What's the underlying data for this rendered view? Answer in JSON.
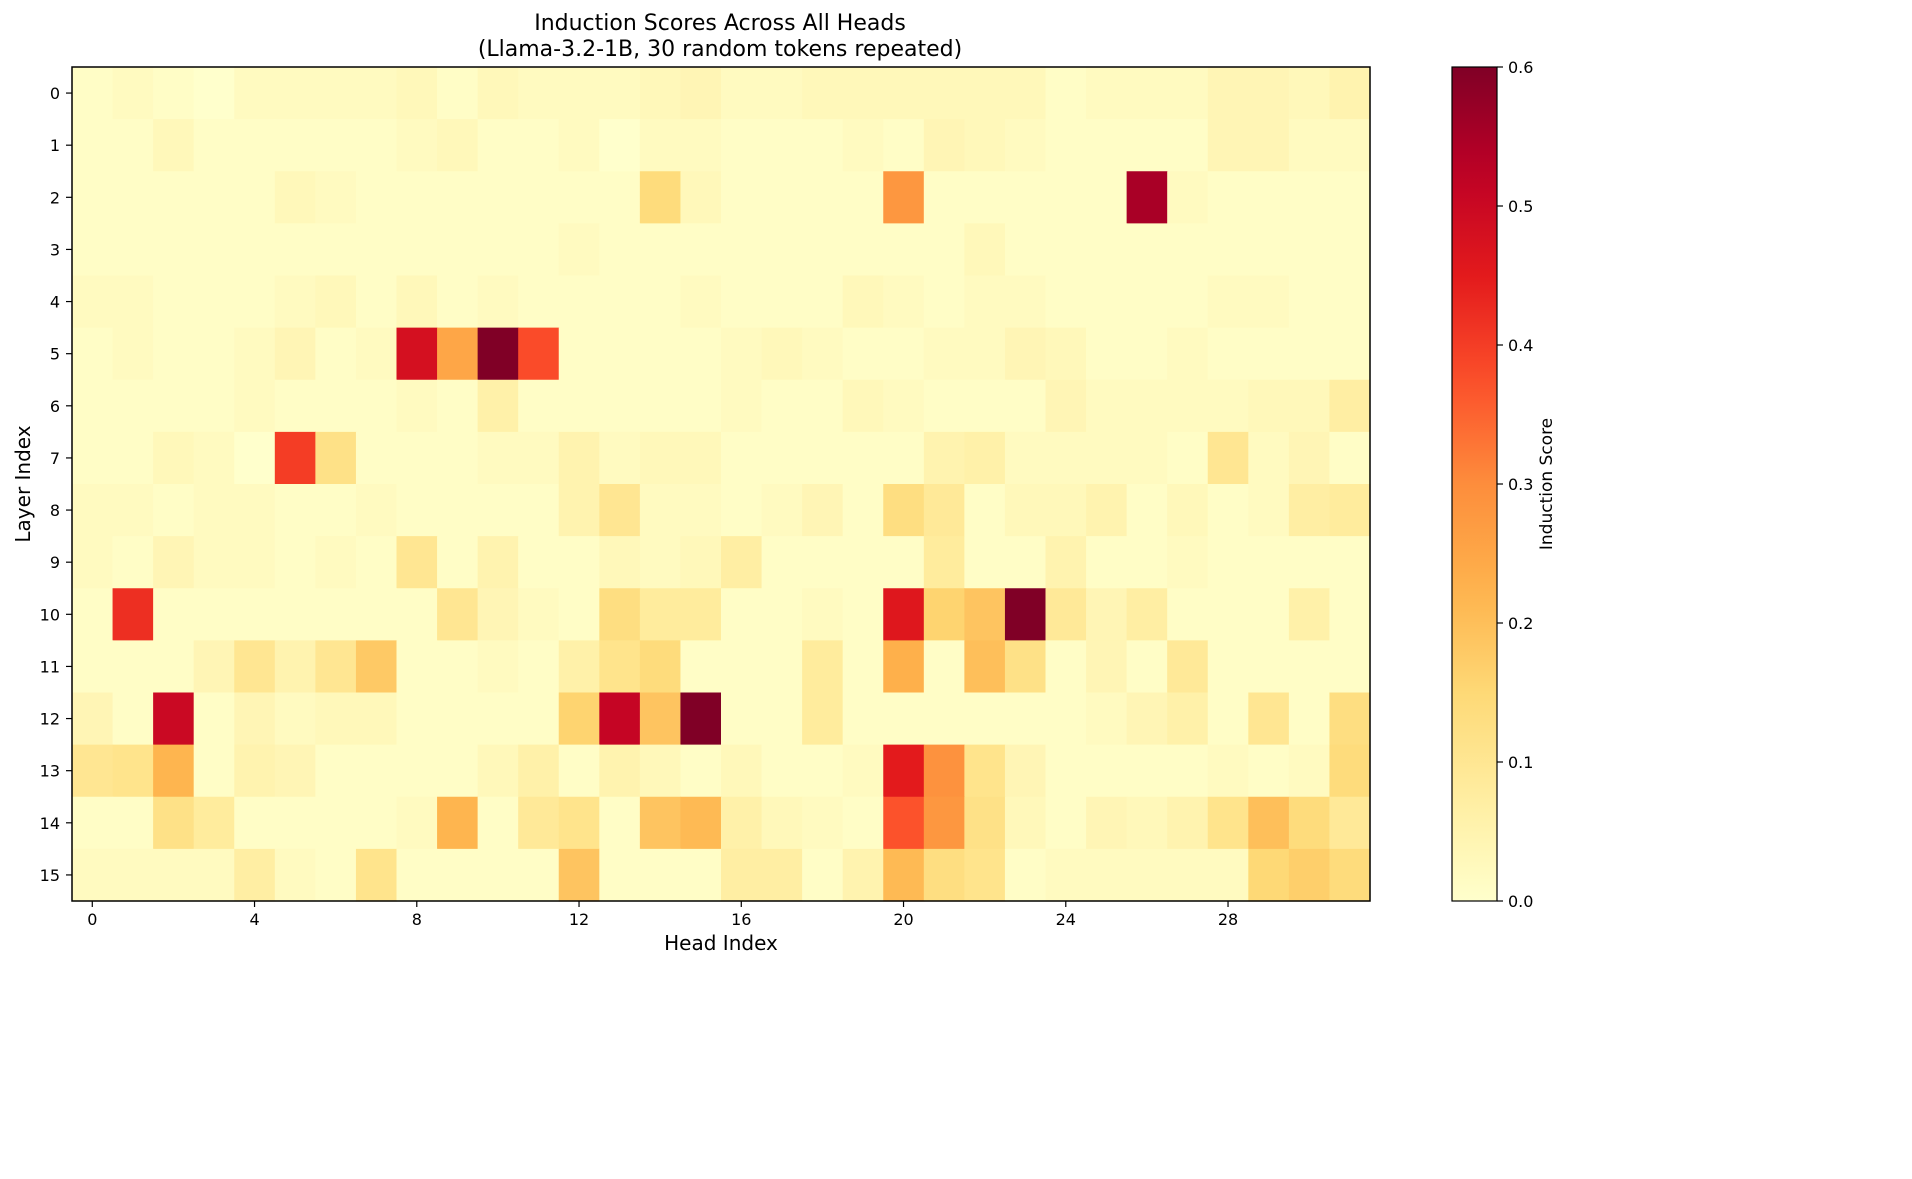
{
  "chart_data": {
    "type": "heatmap",
    "title": "Induction Scores Across All Heads",
    "subtitle": "(Llama-3.2-1B, 30 random tokens repeated)",
    "xlabel": "Head Index",
    "ylabel": "Layer Index",
    "colorbar_label": "Induction Score",
    "colormap": "YlOrRd",
    "colormap_stops": [
      "#ffffcc",
      "#ffeda0",
      "#fed976",
      "#feb24c",
      "#fd8d3c",
      "#fc4e2a",
      "#e31a1c",
      "#bd0026",
      "#800026"
    ],
    "vmin": 0.0,
    "vmax": 0.6,
    "x_ticks": [
      "0",
      "4",
      "8",
      "12",
      "16",
      "20",
      "24",
      "28"
    ],
    "y_ticks": [
      "0",
      "1",
      "2",
      "3",
      "4",
      "5",
      "6",
      "7",
      "8",
      "9",
      "10",
      "11",
      "12",
      "13",
      "14",
      "15"
    ],
    "colorbar_ticks": [
      "0.0",
      "0.1",
      "0.2",
      "0.3",
      "0.4",
      "0.5",
      "0.6"
    ],
    "n_heads": 32,
    "n_layers": 16,
    "values": [
      [
        0.01,
        0.02,
        0.01,
        0.0,
        0.02,
        0.02,
        0.02,
        0.02,
        0.03,
        0.01,
        0.03,
        0.02,
        0.02,
        0.02,
        0.03,
        0.04,
        0.02,
        0.02,
        0.03,
        0.03,
        0.03,
        0.03,
        0.03,
        0.03,
        0.01,
        0.02,
        0.02,
        0.02,
        0.04,
        0.04,
        0.03,
        0.05
      ],
      [
        0.01,
        0.01,
        0.03,
        0.01,
        0.01,
        0.01,
        0.01,
        0.01,
        0.02,
        0.03,
        0.01,
        0.01,
        0.02,
        0.0,
        0.02,
        0.02,
        0.01,
        0.01,
        0.01,
        0.02,
        0.01,
        0.04,
        0.03,
        0.02,
        0.01,
        0.01,
        0.01,
        0.01,
        0.04,
        0.04,
        0.02,
        0.02
      ],
      [
        0.01,
        0.01,
        0.01,
        0.01,
        0.01,
        0.03,
        0.02,
        0.01,
        0.01,
        0.01,
        0.01,
        0.01,
        0.01,
        0.01,
        0.14,
        0.03,
        0.01,
        0.01,
        0.01,
        0.01,
        0.28,
        0.01,
        0.01,
        0.01,
        0.01,
        0.01,
        0.55,
        0.02,
        0.01,
        0.01,
        0.01,
        0.01
      ],
      [
        0.01,
        0.01,
        0.01,
        0.01,
        0.01,
        0.01,
        0.01,
        0.01,
        0.01,
        0.01,
        0.01,
        0.01,
        0.02,
        0.01,
        0.01,
        0.01,
        0.01,
        0.01,
        0.01,
        0.01,
        0.01,
        0.01,
        0.03,
        0.01,
        0.01,
        0.01,
        0.01,
        0.01,
        0.01,
        0.01,
        0.01,
        0.01
      ],
      [
        0.02,
        0.02,
        0.01,
        0.01,
        0.01,
        0.02,
        0.03,
        0.01,
        0.03,
        0.01,
        0.02,
        0.01,
        0.01,
        0.01,
        0.01,
        0.02,
        0.01,
        0.01,
        0.01,
        0.03,
        0.02,
        0.01,
        0.02,
        0.02,
        0.01,
        0.01,
        0.01,
        0.01,
        0.02,
        0.02,
        0.01,
        0.01
      ],
      [
        0.01,
        0.02,
        0.01,
        0.01,
        0.02,
        0.04,
        0.01,
        0.02,
        0.48,
        0.25,
        0.6,
        0.38,
        0.01,
        0.01,
        0.01,
        0.01,
        0.02,
        0.03,
        0.02,
        0.01,
        0.01,
        0.02,
        0.02,
        0.04,
        0.03,
        0.01,
        0.01,
        0.02,
        0.01,
        0.01,
        0.01,
        0.01
      ],
      [
        0.01,
        0.01,
        0.01,
        0.01,
        0.02,
        0.01,
        0.01,
        0.01,
        0.02,
        0.01,
        0.06,
        0.01,
        0.01,
        0.01,
        0.01,
        0.01,
        0.02,
        0.01,
        0.01,
        0.03,
        0.02,
        0.01,
        0.01,
        0.01,
        0.04,
        0.02,
        0.02,
        0.02,
        0.02,
        0.03,
        0.03,
        0.07
      ],
      [
        0.01,
        0.01,
        0.03,
        0.02,
        0.0,
        0.4,
        0.12,
        0.01,
        0.01,
        0.01,
        0.02,
        0.02,
        0.05,
        0.02,
        0.03,
        0.03,
        0.01,
        0.01,
        0.01,
        0.01,
        0.01,
        0.05,
        0.06,
        0.02,
        0.02,
        0.02,
        0.02,
        0.01,
        0.1,
        0.02,
        0.04,
        0.01
      ],
      [
        0.02,
        0.02,
        0.01,
        0.02,
        0.02,
        0.01,
        0.01,
        0.02,
        0.01,
        0.01,
        0.01,
        0.01,
        0.05,
        0.1,
        0.02,
        0.02,
        0.01,
        0.02,
        0.04,
        0.01,
        0.13,
        0.09,
        0.01,
        0.03,
        0.03,
        0.05,
        0.01,
        0.03,
        0.01,
        0.02,
        0.07,
        0.08
      ],
      [
        0.02,
        0.01,
        0.04,
        0.02,
        0.02,
        0.01,
        0.02,
        0.01,
        0.1,
        0.01,
        0.05,
        0.01,
        0.01,
        0.03,
        0.02,
        0.03,
        0.07,
        0.01,
        0.01,
        0.01,
        0.01,
        0.08,
        0.01,
        0.01,
        0.05,
        0.01,
        0.01,
        0.02,
        0.01,
        0.01,
        0.01,
        0.01
      ],
      [
        0.01,
        0.42,
        0.01,
        0.01,
        0.01,
        0.01,
        0.01,
        0.01,
        0.01,
        0.1,
        0.04,
        0.02,
        0.01,
        0.13,
        0.08,
        0.08,
        0.01,
        0.01,
        0.02,
        0.01,
        0.46,
        0.16,
        0.19,
        0.6,
        0.09,
        0.04,
        0.07,
        0.01,
        0.01,
        0.01,
        0.06,
        0.01
      ],
      [
        0.01,
        0.01,
        0.01,
        0.04,
        0.1,
        0.05,
        0.1,
        0.18,
        0.01,
        0.01,
        0.02,
        0.01,
        0.06,
        0.11,
        0.14,
        0.01,
        0.01,
        0.01,
        0.08,
        0.01,
        0.23,
        0.01,
        0.2,
        0.12,
        0.01,
        0.04,
        0.01,
        0.09,
        0.01,
        0.01,
        0.01,
        0.01
      ],
      [
        0.04,
        0.01,
        0.5,
        0.01,
        0.04,
        0.02,
        0.03,
        0.03,
        0.01,
        0.01,
        0.01,
        0.01,
        0.16,
        0.51,
        0.19,
        0.6,
        0.01,
        0.01,
        0.08,
        0.01,
        0.01,
        0.01,
        0.01,
        0.01,
        0.01,
        0.02,
        0.04,
        0.06,
        0.01,
        0.1,
        0.01,
        0.13
      ],
      [
        0.1,
        0.11,
        0.22,
        0.01,
        0.05,
        0.04,
        0.01,
        0.01,
        0.01,
        0.01,
        0.03,
        0.06,
        0.01,
        0.05,
        0.03,
        0.01,
        0.03,
        0.01,
        0.01,
        0.02,
        0.45,
        0.29,
        0.11,
        0.04,
        0.01,
        0.01,
        0.01,
        0.01,
        0.02,
        0.01,
        0.02,
        0.14
      ],
      [
        0.01,
        0.01,
        0.12,
        0.08,
        0.01,
        0.01,
        0.01,
        0.01,
        0.02,
        0.22,
        0.01,
        0.09,
        0.11,
        0.01,
        0.19,
        0.21,
        0.06,
        0.03,
        0.02,
        0.01,
        0.37,
        0.28,
        0.12,
        0.03,
        0.01,
        0.04,
        0.03,
        0.05,
        0.11,
        0.2,
        0.14,
        0.09
      ],
      [
        0.02,
        0.02,
        0.02,
        0.02,
        0.07,
        0.02,
        0.01,
        0.11,
        0.01,
        0.01,
        0.01,
        0.01,
        0.19,
        0.01,
        0.01,
        0.01,
        0.07,
        0.07,
        0.01,
        0.05,
        0.21,
        0.13,
        0.11,
        0.01,
        0.02,
        0.02,
        0.02,
        0.02,
        0.02,
        0.15,
        0.17,
        0.14
      ]
    ]
  }
}
